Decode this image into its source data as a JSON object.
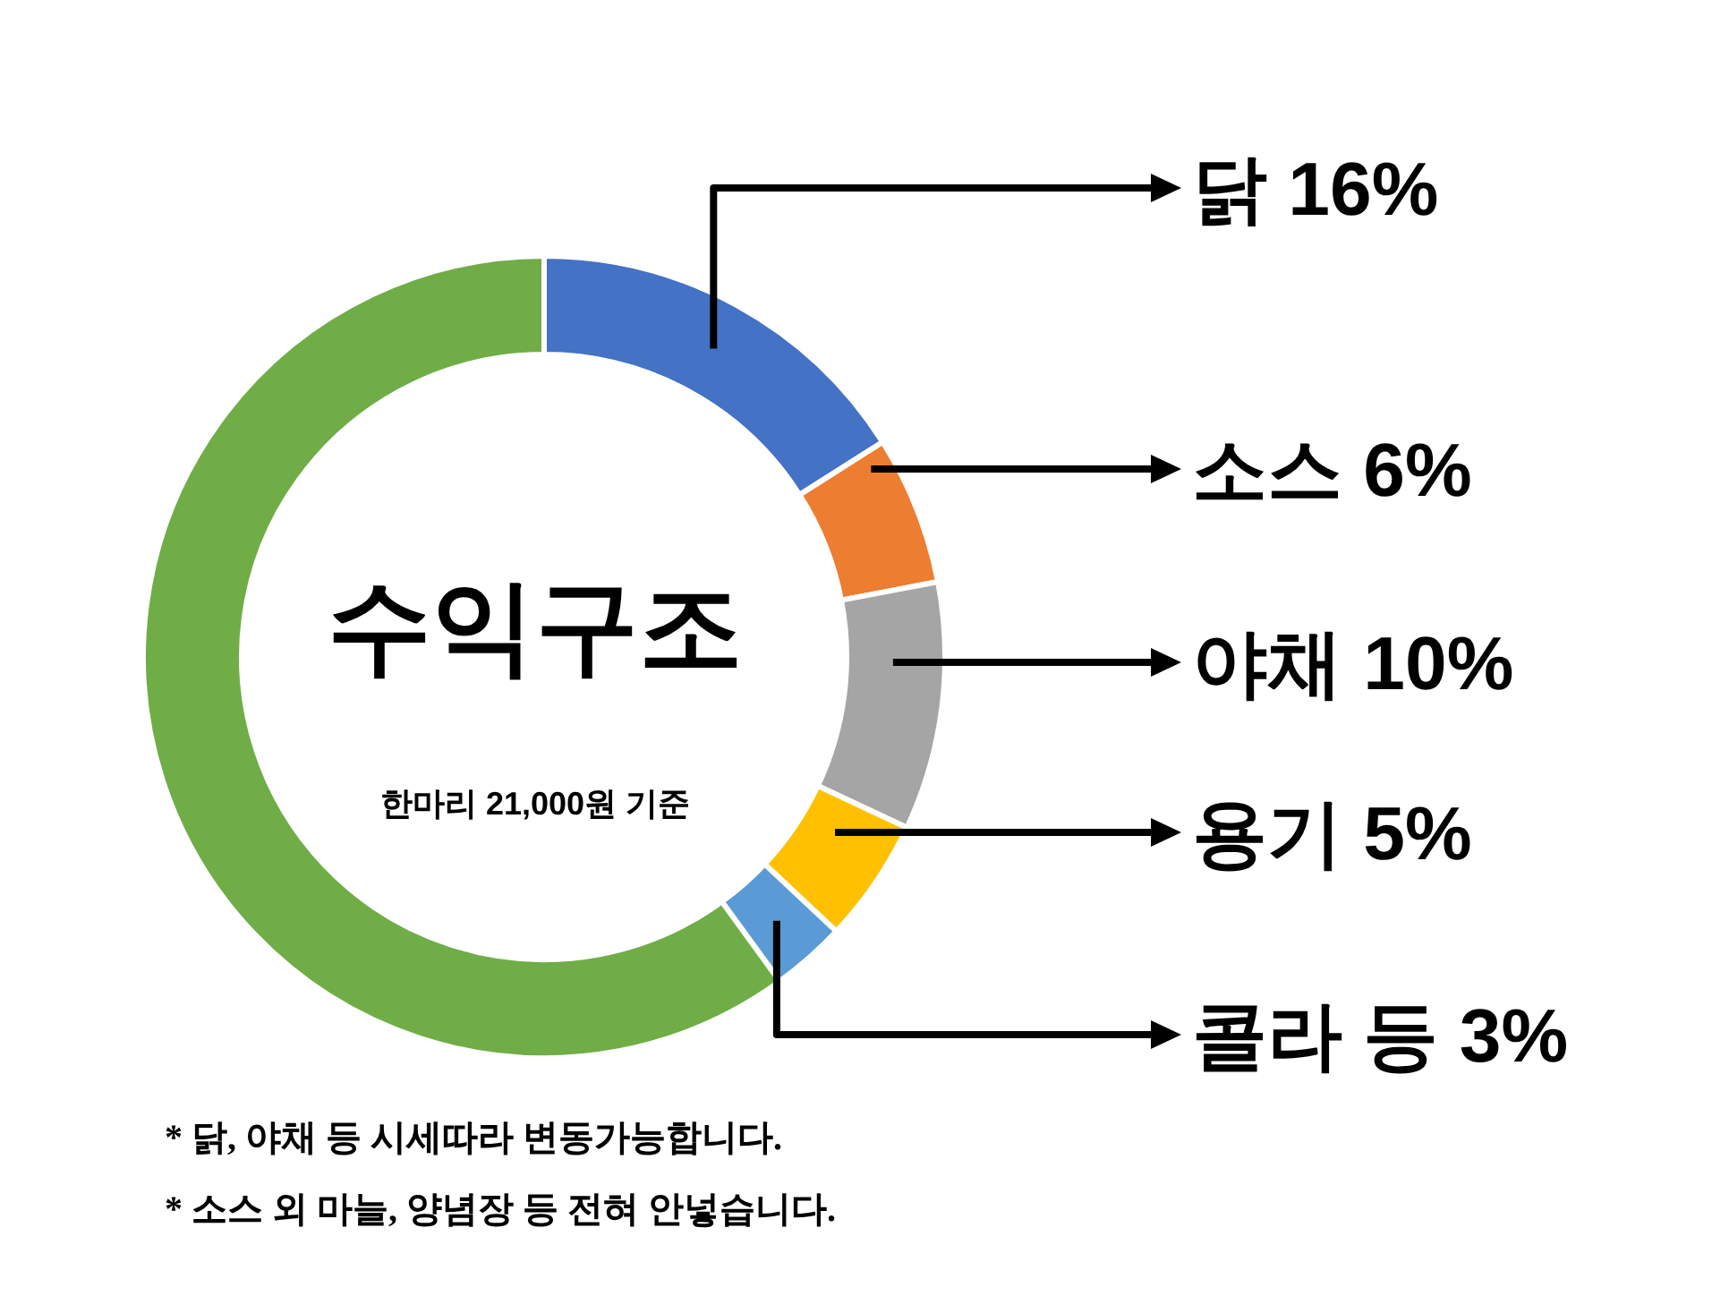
{
  "chart_data": {
    "type": "donut",
    "title": "수익구조",
    "subtitle": "한마리 21,000원 기준",
    "categories": [
      "닭",
      "소스",
      "야채",
      "용기",
      "콜라 등",
      null
    ],
    "values": [
      16,
      6,
      10,
      5,
      3,
      60
    ],
    "value_labels": [
      "16%",
      "6%",
      "10%",
      "5%",
      "3%",
      null
    ],
    "colors": [
      "#4472c4",
      "#ed7d31",
      "#a5a5a5",
      "#ffc000",
      "#5b9bd5",
      "#70ad47"
    ],
    "annotations": [
      "* 닭, 야채 등 시세따라 변동가능합니다.",
      "* 소스 외 마늘, 양념장 등 전혀 안넣습니다."
    ]
  }
}
